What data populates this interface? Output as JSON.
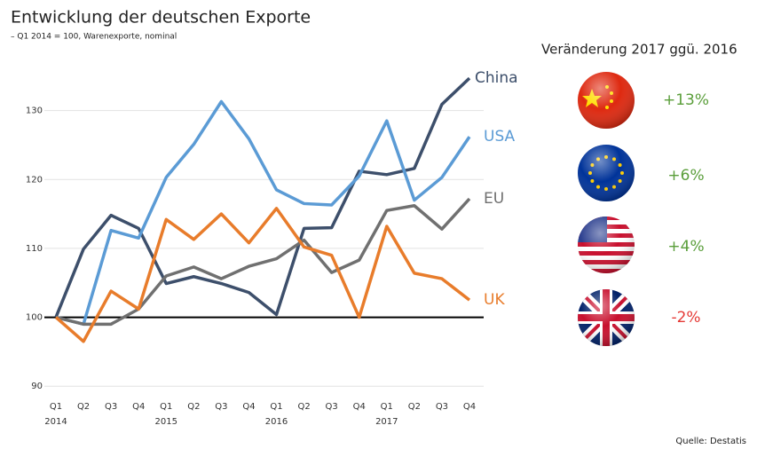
{
  "chart_data": {
    "type": "line",
    "title": "Entwicklung der deutschen Exporte",
    "subtitle": "– Q1 2014 = 100, Warenexporte, nominal",
    "categories": [
      "Q1",
      "Q2",
      "Q3",
      "Q4",
      "Q1",
      "Q2",
      "Q3",
      "Q4",
      "Q1",
      "Q2",
      "Q3",
      "Q4",
      "Q1",
      "Q2",
      "Q3",
      "Q4"
    ],
    "year_labels": [
      "2014",
      "2015",
      "2016",
      "2017"
    ],
    "series": [
      {
        "name": "China",
        "color": "#3d4f6b",
        "values": [
          100,
          109.9,
          114.8,
          112.9,
          104.9,
          105.9,
          104.9,
          103.6,
          100.4,
          112.9,
          113.0,
          121.2,
          120.7,
          121.6,
          130.9,
          134.7
        ]
      },
      {
        "name": "USA",
        "color": "#5b9bd5",
        "values": [
          100,
          99,
          112.6,
          111.5,
          120.3,
          125.1,
          131.3,
          125.9,
          118.5,
          116.5,
          116.3,
          120.5,
          128.5,
          117,
          120.3,
          126.2
        ]
      },
      {
        "name": "EU",
        "color": "#707070",
        "values": [
          100,
          99,
          99,
          101.2,
          106,
          107.3,
          105.6,
          107.4,
          108.5,
          111.2,
          106.5,
          108.3,
          115.5,
          116.2,
          112.8,
          117.2
        ]
      },
      {
        "name": "UK",
        "color": "#e87c2b",
        "values": [
          100,
          96.5,
          103.8,
          101.2,
          114.2,
          111.3,
          115,
          110.8,
          115.8,
          110.2,
          109,
          100,
          113.2,
          106.4,
          105.6,
          102.5
        ]
      }
    ],
    "ylim": [
      89,
      136
    ],
    "yticks": [
      90,
      100,
      110,
      120,
      130
    ],
    "grid": true,
    "baseline": 100,
    "source": "Quelle: Destatis"
  },
  "panel": {
    "title": "Veränderung 2017 ggü. 2016",
    "items": [
      {
        "value": 13,
        "label": "+13%"
      },
      {
        "value": 6,
        "label": "+6%"
      },
      {
        "value": 4,
        "label": "+4%"
      },
      {
        "value": -2,
        "label": "-2%"
      }
    ]
  }
}
